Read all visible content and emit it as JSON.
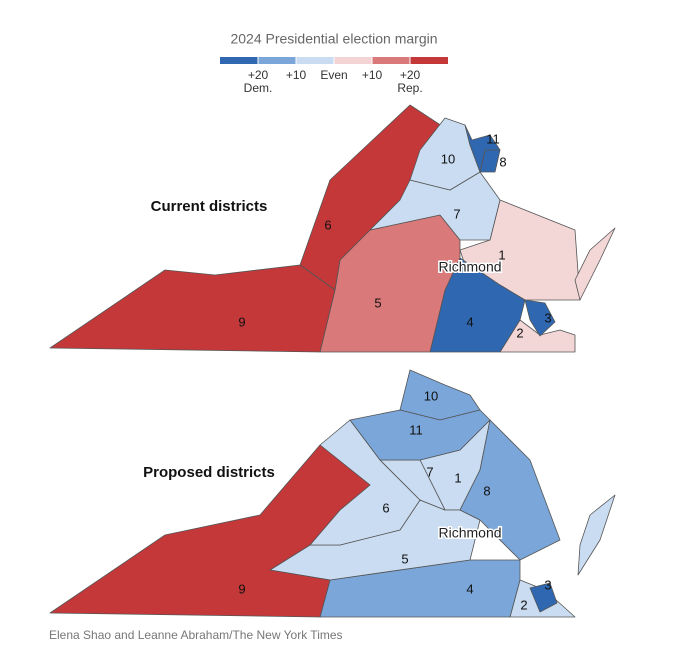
{
  "legend": {
    "title": "2024 Presidential election margin",
    "colors": [
      "#2f68b0",
      "#7aa6d9",
      "#c9dcf1",
      "#f3d3d3",
      "#d9797a",
      "#c4383a"
    ],
    "ticks": [
      {
        "text": "+20",
        "sub": "Dem."
      },
      {
        "text": "+10"
      },
      {
        "text": "Even"
      },
      {
        "text": "+10"
      },
      {
        "text": "+20",
        "sub": "Rep."
      }
    ]
  },
  "maps": [
    {
      "title": "Current districts",
      "city": "Richmond",
      "districts": [
        {
          "label": "1",
          "color": "#f3d6d6"
        },
        {
          "label": "2",
          "color": "#f3d6d6"
        },
        {
          "label": "3",
          "color": "#2f68b0"
        },
        {
          "label": "4",
          "color": "#2f68b0"
        },
        {
          "label": "5",
          "color": "#d9797a"
        },
        {
          "label": "6",
          "color": "#c4383a"
        },
        {
          "label": "7",
          "color": "#c9dcf1"
        },
        {
          "label": "8",
          "color": "#2f68b0"
        },
        {
          "label": "9",
          "color": "#c4383a"
        },
        {
          "label": "10",
          "color": "#c9dcf1"
        },
        {
          "label": "11",
          "color": "#2f68b0"
        }
      ]
    },
    {
      "title": "Proposed districts",
      "city": "Richmond",
      "districts": [
        {
          "label": "1",
          "color": "#c9dcf1"
        },
        {
          "label": "2",
          "color": "#c9dcf1"
        },
        {
          "label": "3",
          "color": "#2f68b0"
        },
        {
          "label": "4",
          "color": "#7aa6d9"
        },
        {
          "label": "5",
          "color": "#c9dcf1"
        },
        {
          "label": "6",
          "color": "#c9dcf1"
        },
        {
          "label": "7",
          "color": "#c9dcf1"
        },
        {
          "label": "8",
          "color": "#7aa6d9"
        },
        {
          "label": "9",
          "color": "#c4383a"
        },
        {
          "label": "10",
          "color": "#7aa6d9"
        },
        {
          "label": "11",
          "color": "#7aa6d9"
        }
      ]
    }
  ],
  "credit": "Elena Shao and Leanne Abraham/The New York Times"
}
